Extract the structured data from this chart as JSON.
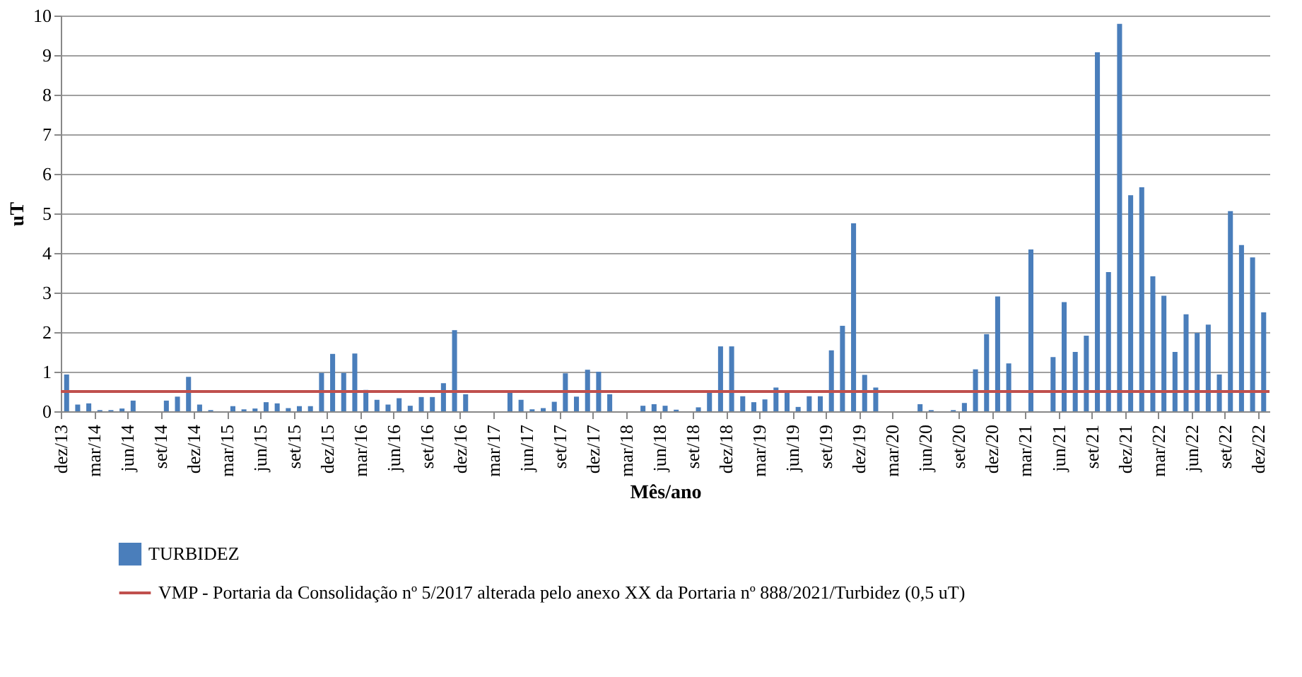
{
  "chart_data": {
    "type": "bar",
    "xlabel": "Mês/ano",
    "ylabel": "uT",
    "categories": [
      "dez/13",
      null,
      null,
      "mar/14",
      null,
      null,
      "jun/14",
      null,
      null,
      "set/14",
      null,
      null,
      "dez/14",
      null,
      null,
      "mar/15",
      null,
      null,
      "jun/15",
      null,
      null,
      "set/15",
      null,
      null,
      "dez/15",
      null,
      null,
      "mar/16",
      null,
      null,
      "jun/16",
      null,
      null,
      "set/16",
      null,
      null,
      "dez/16",
      null,
      null,
      "mar/17",
      null,
      null,
      "jun/17",
      null,
      null,
      "set/17",
      null,
      null,
      "dez/17",
      null,
      null,
      "mar/18",
      null,
      null,
      "jun/18",
      null,
      null,
      "set/18",
      null,
      null,
      "dez/18",
      null,
      null,
      "mar/19",
      null,
      null,
      "jun/19",
      null,
      null,
      "set/19",
      null,
      null,
      "dez/19",
      null,
      null,
      "mar/20",
      null,
      null,
      "jun/20",
      null,
      null,
      "set/20",
      null,
      null,
      "dez/20",
      null,
      null,
      "mar/21",
      null,
      null,
      "jun/21",
      null,
      null,
      "set/21",
      null,
      null,
      "dez/21",
      null,
      null,
      "mar/22",
      null,
      null,
      "jun/22",
      null,
      null,
      "set/22",
      null,
      null,
      "dez/22"
    ],
    "series": [
      {
        "name": "TURBIDEZ",
        "color": "#4a7ebb",
        "values": [
          0.93,
          0.17,
          0.2,
          0.03,
          0.03,
          0.07,
          0.27,
          null,
          null,
          0.27,
          0.37,
          0.87,
          0.17,
          0.03,
          null,
          0.13,
          0.05,
          0.07,
          0.23,
          0.2,
          0.08,
          0.13,
          0.13,
          0.97,
          1.45,
          0.97,
          1.46,
          0.54,
          0.29,
          0.17,
          0.33,
          0.14,
          0.36,
          0.36,
          0.71,
          2.05,
          0.43,
          null,
          null,
          null,
          0.47,
          0.29,
          0.05,
          0.08,
          0.24,
          0.96,
          0.37,
          1.05,
          1.0,
          0.43,
          null,
          null,
          0.14,
          0.18,
          0.14,
          0.04,
          null,
          0.1,
          0.47,
          1.64,
          1.64,
          0.38,
          0.23,
          0.3,
          0.6,
          0.47,
          0.11,
          0.38,
          0.38,
          1.54,
          2.16,
          4.75,
          0.92,
          0.6,
          null,
          null,
          null,
          0.18,
          0.03,
          null,
          0.03,
          0.21,
          1.06,
          1.95,
          2.9,
          1.21,
          null,
          4.09,
          null,
          1.37,
          2.76,
          1.5,
          1.91,
          9.07,
          3.52,
          9.79,
          5.46,
          5.66,
          3.41,
          2.92,
          1.5,
          2.45,
          1.98,
          2.19,
          0.93,
          5.06,
          4.2,
          3.89,
          2.5
        ]
      }
    ],
    "ref_lines": [
      {
        "axis": "y",
        "value": 0.5,
        "label": "VMP - Portaria da Consolidação nº 5/2017 alterada pelo anexo XX da Portaria nº 888/2021/Turbidez (0,5 uT)",
        "color": "#c0504d",
        "line_style": "solid"
      }
    ],
    "ylim": [
      0,
      10
    ],
    "yticks": [
      0,
      1,
      2,
      3,
      4,
      5,
      6,
      7,
      8,
      9,
      10
    ],
    "grid": "y",
    "legend": "bottom left"
  }
}
